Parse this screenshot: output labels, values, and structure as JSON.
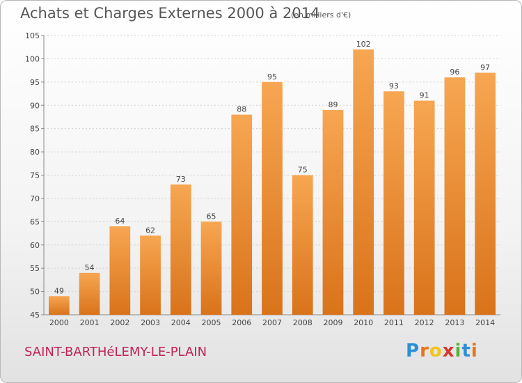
{
  "header": {
    "title": "Achats et Charges Externes 2000 à 2014",
    "unit": "(en milliers d'€)"
  },
  "footer": {
    "commune": "SAINT-BARTHéLEMY-LE-PLAIN",
    "brand": "Proxiti"
  },
  "colors": {
    "bar_top": "#f7a652",
    "bar_bottom": "#d9731a",
    "grid": "#d0d0d0",
    "text": "#444444",
    "commune": "#c0235a",
    "brand_letters": [
      "#2a8fd6",
      "#e8731c",
      "#f2c41a",
      "#d3382e",
      "#58b33a",
      "#2a8fd6",
      "#e8731c"
    ]
  },
  "chart_data": {
    "type": "bar",
    "title": "Achats et Charges Externes 2000 à 2014",
    "xlabel": "",
    "ylabel": "",
    "ylim": [
      45,
      105
    ],
    "yticks": [
      45,
      50,
      55,
      60,
      65,
      70,
      75,
      80,
      85,
      90,
      95,
      100,
      105
    ],
    "grid": true,
    "categories": [
      "2000",
      "2001",
      "2002",
      "2003",
      "2004",
      "2005",
      "2006",
      "2007",
      "2008",
      "2009",
      "2010",
      "2011",
      "2012",
      "2013",
      "2014"
    ],
    "values": [
      49,
      54,
      64,
      62,
      73,
      65,
      88,
      95,
      75,
      89,
      102,
      93,
      91,
      96,
      97
    ]
  }
}
